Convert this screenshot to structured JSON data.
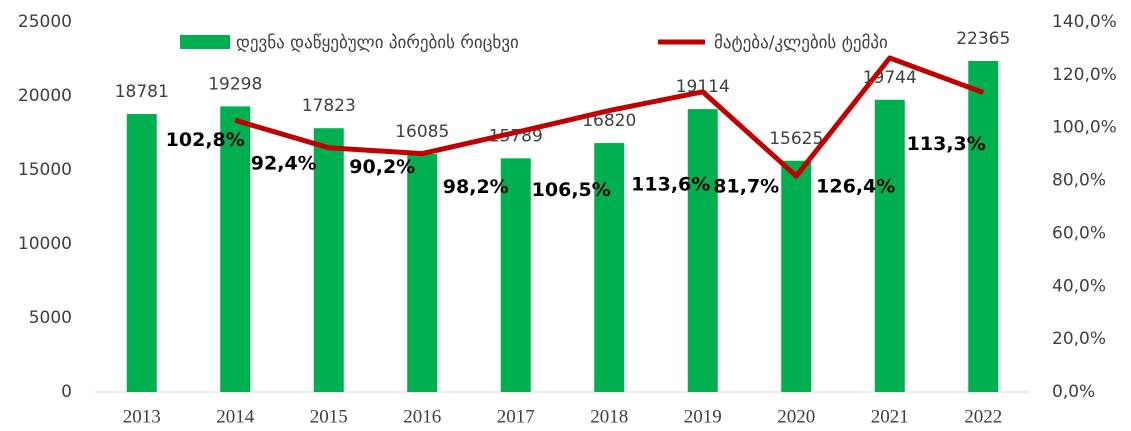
{
  "chart_data": {
    "type": "bar",
    "categories": [
      "2013",
      "2014",
      "2015",
      "2016",
      "2017",
      "2018",
      "2019",
      "2020",
      "2021",
      "2022"
    ],
    "series": [
      {
        "name": "დევნა დაწყებული პირების რიცხვი",
        "color": "#00b050",
        "values": [
          18781,
          19298,
          17823,
          16085,
          15789,
          16820,
          19114,
          15625,
          19744,
          22365
        ]
      },
      {
        "name": "მატება/კლების ტემპი",
        "color": "#c00000",
        "type": "line",
        "axis": "y2",
        "values": [
          null,
          102.8,
          92.4,
          90.2,
          98.2,
          106.5,
          113.6,
          81.7,
          126.4,
          113.3
        ],
        "value_labels": [
          null,
          "102,8%",
          "92,4%",
          "90,2%",
          "98,2%",
          "106,5%",
          "113,6%",
          "81,7%",
          "126,4%",
          "113,3%"
        ]
      }
    ],
    "ylim": [
      0,
      25000
    ],
    "yticks": [
      0,
      5000,
      10000,
      15000,
      20000,
      25000
    ],
    "y2lim": [
      0,
      140
    ],
    "y2ticks": [
      {
        "value": 0,
        "label": "0,0%"
      },
      {
        "value": 20,
        "label": "20,0%"
      },
      {
        "value": 40,
        "label": "40,0%"
      },
      {
        "value": 60,
        "label": "60,0%"
      },
      {
        "value": 80,
        "label": "80,0%"
      },
      {
        "value": 100,
        "label": "100,0%"
      },
      {
        "value": 120,
        "label": "120,0%"
      },
      {
        "value": 140,
        "label": "140,0%"
      }
    ],
    "grid": false,
    "legend": "top"
  }
}
